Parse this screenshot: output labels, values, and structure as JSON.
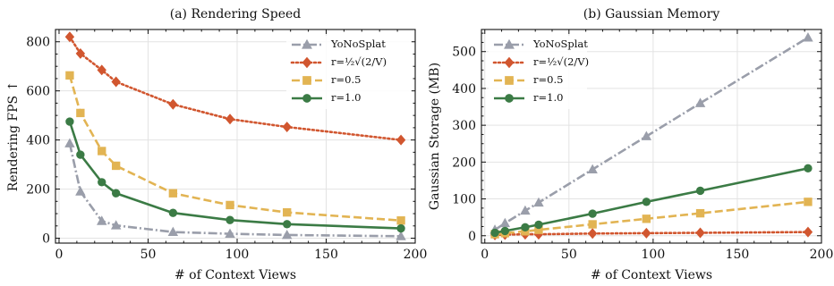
{
  "chart_data": [
    {
      "type": "line",
      "title": "(a) Rendering Speed",
      "xlabel": "# of Context Views",
      "ylabel": "Rendering FPS ↑",
      "xlim": [
        -2,
        200
      ],
      "ylim": [
        -20,
        850
      ],
      "xticks": [
        0,
        50,
        100,
        150,
        200
      ],
      "yticks": [
        0,
        200,
        400,
        600,
        800
      ],
      "grid": true,
      "legend_position": "top-right",
      "x": [
        6,
        12,
        24,
        32,
        64,
        96,
        128,
        192
      ],
      "series": [
        {
          "name": "YoNoSplat",
          "color": "#9a9eaa",
          "marker": "triangle",
          "dash": "dashdot",
          "values": [
            386,
            190,
            70,
            52,
            25,
            18,
            13,
            8
          ]
        },
        {
          "name": "r=½√(2/V)",
          "color": "#d1562f",
          "marker": "diamond",
          "dash": "dotted",
          "values": [
            820,
            752,
            685,
            637,
            545,
            485,
            453,
            400
          ]
        },
        {
          "name": "r=0.5",
          "color": "#e2b453",
          "marker": "square",
          "dash": "dashed",
          "values": [
            663,
            510,
            355,
            295,
            183,
            135,
            105,
            72
          ]
        },
        {
          "name": "r=1.0",
          "color": "#3b7b45",
          "marker": "circle",
          "dash": "solid",
          "values": [
            475,
            340,
            228,
            183,
            103,
            74,
            57,
            40
          ]
        }
      ]
    },
    {
      "type": "line",
      "title": "(b) Gaussian Memory",
      "xlabel": "# of Context Views",
      "ylabel": "Gaussian Storage (MB)",
      "xlim": [
        -2,
        200
      ],
      "ylim": [
        -20,
        560
      ],
      "xticks": [
        0,
        50,
        100,
        150,
        200
      ],
      "yticks": [
        0,
        100,
        200,
        300,
        400,
        500
      ],
      "grid": true,
      "legend_position": "top-left",
      "x": [
        6,
        12,
        24,
        32,
        64,
        96,
        128,
        192
      ],
      "series": [
        {
          "name": "YoNoSplat",
          "color": "#9a9eaa",
          "marker": "triangle",
          "dash": "dashdot",
          "values": [
            16,
            34,
            68,
            90,
            180,
            270,
            360,
            538
          ]
        },
        {
          "name": "r=½√(2/V)",
          "color": "#d1562f",
          "marker": "diamond",
          "dash": "dotted",
          "values": [
            2,
            3,
            4,
            4,
            6,
            7,
            8,
            10
          ]
        },
        {
          "name": "r=0.5",
          "color": "#e2b453",
          "marker": "square",
          "dash": "dashed",
          "values": [
            4,
            7,
            12,
            16,
            31,
            46,
            61,
            92
          ]
        },
        {
          "name": "r=1.0",
          "color": "#3b7b45",
          "marker": "circle",
          "dash": "solid",
          "values": [
            8,
            13,
            23,
            30,
            60,
            92,
            122,
            183
          ]
        }
      ]
    }
  ]
}
